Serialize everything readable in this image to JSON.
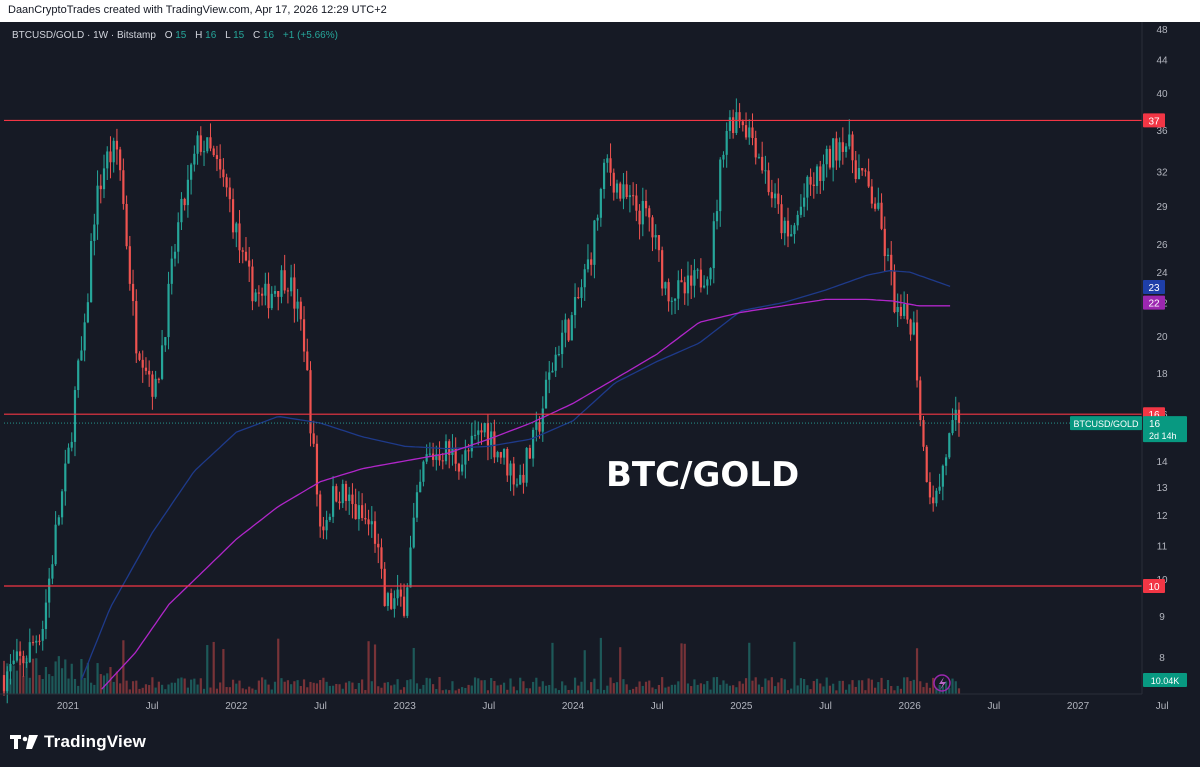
{
  "header": {
    "attribution": "DaanCryptoTrades created with TradingView.com, Apr 17, 2026 12:29 UTC+2"
  },
  "legend": {
    "symbol": "BTCUSD/GOLD · 1W · Bitstamp",
    "o_label": "O",
    "o_value": "15",
    "h_label": "H",
    "h_value": "16",
    "l_label": "L",
    "l_value": "15",
    "c_label": "C",
    "c_value": "16",
    "change": "+1 (+5.66%)"
  },
  "annotation": "BTC/GOLD",
  "branding": {
    "name": "TradingView"
  },
  "colors": {
    "background": "#161a25",
    "up": "#26a69a",
    "down": "#ef5350",
    "ma_slow": "#1e3a8a",
    "ma_fast": "#b026c9",
    "level": "#f23645",
    "axis_text": "#b2b5be"
  },
  "chart_data": {
    "type": "candlestick",
    "symbol": "BTCUSD/GOLD",
    "interval": "1W",
    "exchange": "Bitstamp",
    "y_scale": "log",
    "ylim": [
      7.2,
      49
    ],
    "xlim": [
      2020.62,
      2027.38
    ],
    "x_ticks": [
      {
        "label": "2021",
        "x": 2021.0
      },
      {
        "label": "Jul",
        "x": 2021.5
      },
      {
        "label": "2022",
        "x": 2022.0
      },
      {
        "label": "Jul",
        "x": 2022.5
      },
      {
        "label": "2023",
        "x": 2023.0
      },
      {
        "label": "Jul",
        "x": 2023.5
      },
      {
        "label": "2024",
        "x": 2024.0
      },
      {
        "label": "Jul",
        "x": 2024.5
      },
      {
        "label": "2025",
        "x": 2025.0
      },
      {
        "label": "Jul",
        "x": 2025.5
      },
      {
        "label": "2026",
        "x": 2026.0
      },
      {
        "label": "Jul",
        "x": 2026.5
      },
      {
        "label": "2027",
        "x": 2027.0
      },
      {
        "label": "Jul",
        "x": 2027.5
      }
    ],
    "y_ticks": [
      "8",
      "9",
      "10",
      "11",
      "12",
      "13",
      "14",
      "16",
      "18",
      "20",
      "22",
      "24",
      "26",
      "29",
      "32",
      "36",
      "40",
      "44",
      "48"
    ],
    "price_anchors": [
      [
        2020.62,
        7.6
      ],
      [
        2020.75,
        8.0
      ],
      [
        2020.85,
        8.8
      ],
      [
        2020.93,
        11.5
      ],
      [
        2021.0,
        14.0
      ],
      [
        2021.05,
        17.5
      ],
      [
        2021.1,
        20.0
      ],
      [
        2021.15,
        28.0
      ],
      [
        2021.22,
        33.0
      ],
      [
        2021.3,
        34.0
      ],
      [
        2021.4,
        20.0
      ],
      [
        2021.45,
        19.0
      ],
      [
        2021.52,
        17.0
      ],
      [
        2021.58,
        21.0
      ],
      [
        2021.65,
        27.0
      ],
      [
        2021.78,
        35.0
      ],
      [
        2021.85,
        33.5
      ],
      [
        2021.95,
        30.0
      ],
      [
        2022.05,
        24.0
      ],
      [
        2022.15,
        22.0
      ],
      [
        2022.3,
        24.0
      ],
      [
        2022.4,
        20.0
      ],
      [
        2022.45,
        15.0
      ],
      [
        2022.5,
        11.5
      ],
      [
        2022.6,
        13.0
      ],
      [
        2022.72,
        12.0
      ],
      [
        2022.82,
        11.5
      ],
      [
        2022.88,
        9.3
      ],
      [
        2023.0,
        9.4
      ],
      [
        2023.05,
        11.5
      ],
      [
        2023.12,
        14.0
      ],
      [
        2023.22,
        14.5
      ],
      [
        2023.35,
        14.0
      ],
      [
        2023.48,
        15.5
      ],
      [
        2023.55,
        14.5
      ],
      [
        2023.68,
        13.2
      ],
      [
        2023.78,
        15.0
      ],
      [
        2023.85,
        17.5
      ],
      [
        2023.93,
        20.0
      ],
      [
        2024.0,
        21.0
      ],
      [
        2024.1,
        25.0
      ],
      [
        2024.2,
        33.0
      ],
      [
        2024.28,
        30.0
      ],
      [
        2024.35,
        29.0
      ],
      [
        2024.45,
        28.0
      ],
      [
        2024.55,
        23.0
      ],
      [
        2024.65,
        22.5
      ],
      [
        2024.75,
        23.5
      ],
      [
        2024.82,
        25.0
      ],
      [
        2024.9,
        36.0
      ],
      [
        2024.98,
        38.0
      ],
      [
        2025.08,
        35.0
      ],
      [
        2025.18,
        30.0
      ],
      [
        2025.28,
        26.0
      ],
      [
        2025.38,
        30.0
      ],
      [
        2025.48,
        32.0
      ],
      [
        2025.6,
        35.5
      ],
      [
        2025.7,
        32.0
      ],
      [
        2025.8,
        29.0
      ],
      [
        2025.88,
        24.0
      ],
      [
        2025.93,
        21.0
      ],
      [
        2026.02,
        21.0
      ],
      [
        2026.08,
        14.5
      ],
      [
        2026.12,
        13.0
      ],
      [
        2026.16,
        12.6
      ],
      [
        2026.22,
        14.5
      ],
      [
        2026.27,
        15.5
      ],
      [
        2026.3,
        16.0
      ]
    ],
    "ma_slow": [
      [
        2021.08,
        7.5
      ],
      [
        2021.25,
        9.2
      ],
      [
        2021.5,
        11.4
      ],
      [
        2021.75,
        13.6
      ],
      [
        2022.0,
        15.2
      ],
      [
        2022.25,
        15.9
      ],
      [
        2022.5,
        15.6
      ],
      [
        2022.75,
        15.0
      ],
      [
        2023.0,
        14.6
      ],
      [
        2023.25,
        14.5
      ],
      [
        2023.5,
        14.6
      ],
      [
        2023.75,
        14.9
      ],
      [
        2024.0,
        15.7
      ],
      [
        2024.25,
        17.5
      ],
      [
        2024.5,
        18.6
      ],
      [
        2024.75,
        19.6
      ],
      [
        2025.0,
        21.5
      ],
      [
        2025.25,
        22.0
      ],
      [
        2025.5,
        22.8
      ],
      [
        2025.75,
        23.8
      ],
      [
        2025.88,
        24.1
      ],
      [
        2026.0,
        24.0
      ],
      [
        2026.15,
        23.4
      ],
      [
        2026.25,
        23.0
      ]
    ],
    "ma_fast": [
      [
        2021.2,
        7.3
      ],
      [
        2021.4,
        8.1
      ],
      [
        2021.6,
        9.3
      ],
      [
        2021.8,
        10.2
      ],
      [
        2022.0,
        11.2
      ],
      [
        2022.25,
        12.3
      ],
      [
        2022.5,
        13.2
      ],
      [
        2022.75,
        13.7
      ],
      [
        2023.0,
        14.0
      ],
      [
        2023.25,
        14.3
      ],
      [
        2023.5,
        14.9
      ],
      [
        2023.75,
        15.6
      ],
      [
        2024.0,
        16.5
      ],
      [
        2024.25,
        17.7
      ],
      [
        2024.5,
        19.0
      ],
      [
        2024.75,
        20.8
      ],
      [
        2025.0,
        21.4
      ],
      [
        2025.25,
        21.8
      ],
      [
        2025.5,
        22.2
      ],
      [
        2025.75,
        22.2
      ],
      [
        2025.9,
        22.1
      ],
      [
        2026.05,
        21.8
      ],
      [
        2026.25,
        21.8
      ]
    ],
    "horizontal_levels": [
      {
        "value": 37,
        "label": "37"
      },
      {
        "value": 16,
        "label": "16"
      },
      {
        "value": 9.8,
        "label": "10"
      }
    ],
    "ma_labels": [
      {
        "value": 23,
        "label": "23"
      },
      {
        "value": 22,
        "label": "22"
      }
    ],
    "last_price": {
      "value": 15.6,
      "symbol": "BTCUSD/GOLD",
      "price": "16",
      "countdown": "2d 14h"
    },
    "volume": {
      "label": "10.04K",
      "max": 10
    }
  }
}
